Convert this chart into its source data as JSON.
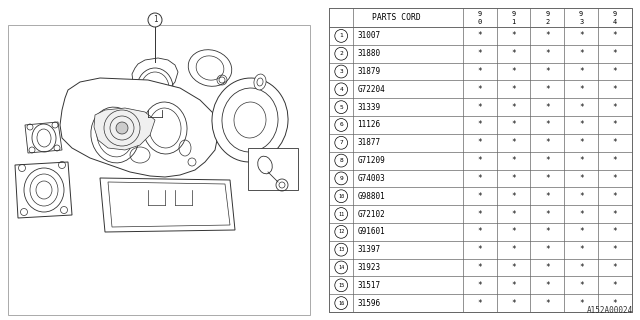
{
  "bg_color": "#ffffff",
  "table_header": "PARTS CORD",
  "year_cols": [
    "9\n0",
    "9\n1",
    "9\n2",
    "9\n3",
    "9\n4"
  ],
  "parts": [
    {
      "num": 1,
      "code": "31007"
    },
    {
      "num": 2,
      "code": "31880"
    },
    {
      "num": 3,
      "code": "31879"
    },
    {
      "num": 4,
      "code": "G72204"
    },
    {
      "num": 5,
      "code": "31339"
    },
    {
      "num": 6,
      "code": "11126"
    },
    {
      "num": 7,
      "code": "31877"
    },
    {
      "num": 8,
      "code": "G71209"
    },
    {
      "num": 9,
      "code": "G74003"
    },
    {
      "num": 10,
      "code": "G98801"
    },
    {
      "num": 11,
      "code": "G72102"
    },
    {
      "num": 12,
      "code": "G91601"
    },
    {
      "num": 13,
      "code": "31397"
    },
    {
      "num": 14,
      "code": "31923"
    },
    {
      "num": 15,
      "code": "31517"
    },
    {
      "num": 16,
      "code": "31596"
    }
  ],
  "watermark": "A152A00024",
  "line_color": "#555555",
  "draw_color": "#333333"
}
